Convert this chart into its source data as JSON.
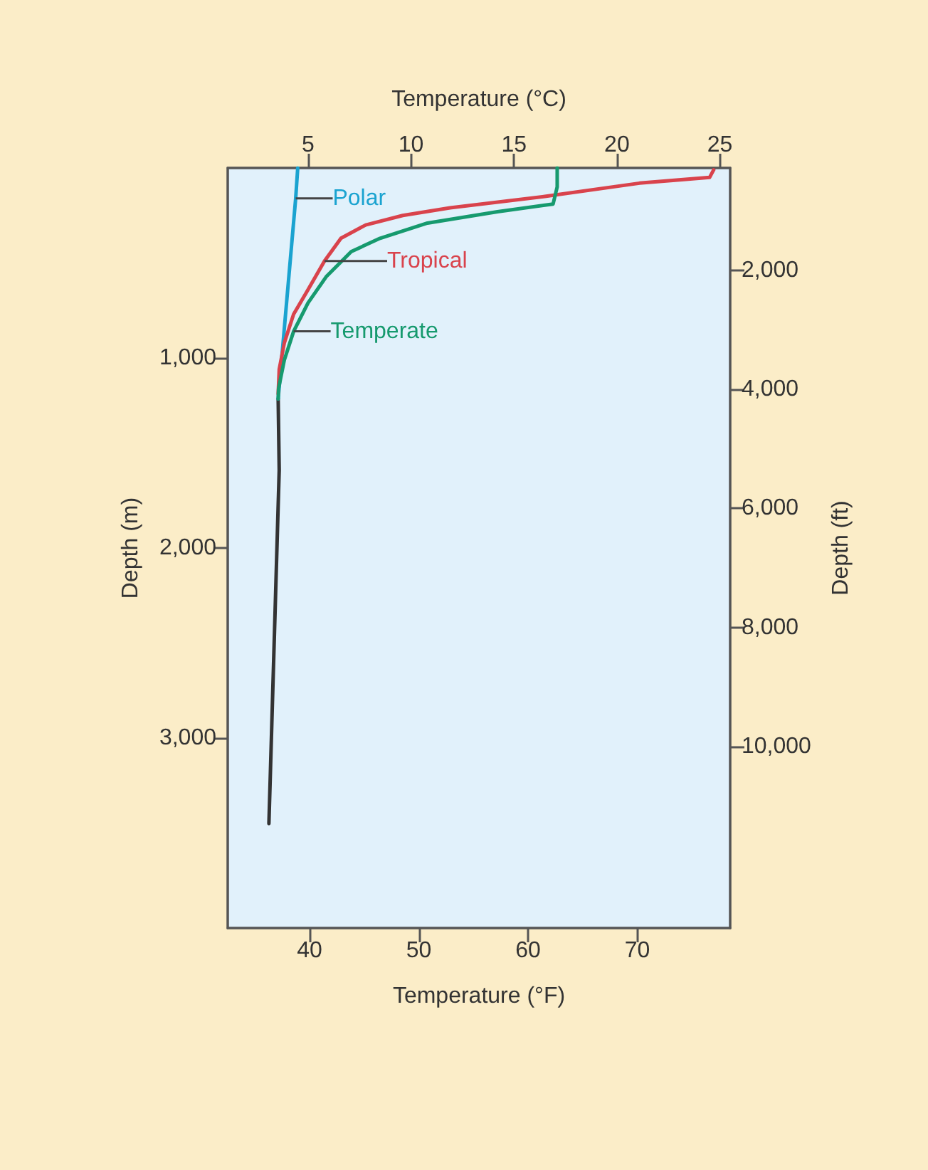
{
  "chart_data": {
    "type": "line",
    "xlabel": "Temperature (°F)",
    "x2label": "Temperature (°C)",
    "ylabel": "Depth (m)",
    "y2label": "Depth (ft)",
    "xlim": [
      32.5,
      78.5
    ],
    "xticks": [
      40,
      50,
      60,
      70
    ],
    "x2lim": [
      1.1,
      25.5
    ],
    "x2ticks": [
      5,
      10,
      15,
      20,
      25
    ],
    "ylim": [
      4000,
      0
    ],
    "yticks": [
      {
        "value": 1000,
        "label": "1,000"
      },
      {
        "value": 2000,
        "label": "2,000"
      },
      {
        "value": 3000,
        "label": "3,000"
      }
    ],
    "y2lim": [
      13050,
      280
    ],
    "y2ticks": [
      {
        "value": 2000,
        "label": "2,000"
      },
      {
        "value": 4000,
        "label": "4,000"
      },
      {
        "value": 6000,
        "label": "6,000"
      },
      {
        "value": 8000,
        "label": "8,000"
      },
      {
        "value": 10000,
        "label": "10,000"
      }
    ],
    "marker": "none",
    "line_style": "solid",
    "grid": false,
    "series": [
      {
        "name": "Polar",
        "color": "#1aa3d0",
        "axis": "x2",
        "x": [
          4.5,
          4.4,
          3.55
        ],
        "values": [
          0,
          160,
          1215
        ]
      },
      {
        "name": "Tropical",
        "color": "#d9434c",
        "axis": "x2",
        "x": [
          24.7,
          24.5,
          21.1,
          16.5,
          11.9,
          9.6,
          7.8,
          6.6,
          5.8,
          5.0,
          4.3,
          3.85,
          3.6,
          3.55
        ],
        "values": [
          10,
          50,
          80,
          150,
          210,
          250,
          300,
          370,
          490,
          640,
          770,
          920,
          1060,
          1190
        ]
      },
      {
        "name": "Temperate",
        "color": "#169a6e",
        "axis": "x2",
        "x": [
          17.1,
          17.1,
          16.9,
          14.2,
          10.8,
          8.5,
          7.1,
          5.9,
          5.0,
          4.3,
          3.85,
          3.57,
          3.55
        ],
        "values": [
          0,
          100,
          190,
          230,
          290,
          370,
          440,
          570,
          710,
          860,
          1010,
          1160,
          1215
        ]
      },
      {
        "color": "#333333",
        "axis": "x2",
        "x": [
          3.55,
          3.6,
          3.1
        ],
        "values": [
          1215,
          1590,
          3450
        ]
      }
    ]
  }
}
